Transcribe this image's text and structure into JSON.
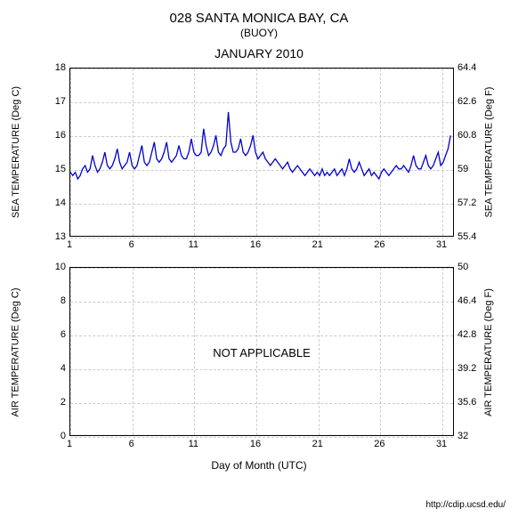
{
  "title_main": "028 SANTA MONICA BAY, CA",
  "title_sub": "(BUOY)",
  "title_month": "JANUARY 2010",
  "xlabel": "Day of Month (UTC)",
  "footer_url": "http://cdip.ucsd.edu/",
  "background_color": "#ffffff",
  "grid_color": "#cccccc",
  "axis_color": "#000000",
  "text_color": "#000000",
  "series_color": "#0000cc",
  "panel_top": {
    "ylabel_left": "SEA TEMPERATURE (Deg C)",
    "ylabel_right": "SEA TEMPERATURE (Deg F)",
    "ylim_left": [
      13,
      18
    ],
    "ylim_right": [
      55.4,
      64.4
    ],
    "yticks_left": [
      13,
      14,
      15,
      16,
      17,
      18
    ],
    "yticks_right": [
      55.4,
      57.2,
      59,
      60.8,
      62.6,
      64.4
    ],
    "xlim": [
      1,
      32
    ],
    "xticks": [
      1,
      6,
      11,
      16,
      21,
      26,
      31
    ],
    "data": {
      "x": [
        1,
        1.2,
        1.4,
        1.6,
        1.8,
        2,
        2.2,
        2.4,
        2.6,
        2.8,
        3,
        3.2,
        3.4,
        3.6,
        3.8,
        4,
        4.2,
        4.4,
        4.6,
        4.8,
        5,
        5.2,
        5.4,
        5.6,
        5.8,
        6,
        6.2,
        6.4,
        6.6,
        6.8,
        7,
        7.2,
        7.4,
        7.6,
        7.8,
        8,
        8.2,
        8.4,
        8.6,
        8.8,
        9,
        9.2,
        9.4,
        9.6,
        9.8,
        10,
        10.2,
        10.4,
        10.6,
        10.8,
        11,
        11.2,
        11.4,
        11.6,
        11.8,
        12,
        12.2,
        12.4,
        12.6,
        12.8,
        13,
        13.2,
        13.4,
        13.6,
        13.8,
        14,
        14.2,
        14.4,
        14.6,
        14.8,
        15,
        15.2,
        15.4,
        15.6,
        15.8,
        16,
        16.2,
        16.4,
        16.6,
        16.8,
        17,
        17.2,
        17.4,
        17.6,
        17.8,
        18,
        18.2,
        18.4,
        18.6,
        18.8,
        19,
        19.2,
        19.4,
        19.6,
        19.8,
        20,
        20.2,
        20.4,
        20.6,
        20.8,
        21,
        21.2,
        21.4,
        21.6,
        21.8,
        22,
        22.2,
        22.4,
        22.6,
        22.8,
        23,
        23.2,
        23.4,
        23.6,
        23.8,
        24,
        24.2,
        24.4,
        24.6,
        24.8,
        25,
        25.2,
        25.4,
        25.6,
        25.8,
        26,
        26.2,
        26.4,
        26.6,
        26.8,
        27,
        27.2,
        27.4,
        27.6,
        27.8,
        28,
        28.2,
        28.4,
        28.6,
        28.8,
        29,
        29.2,
        29.4,
        29.6,
        29.8,
        30,
        30.2,
        30.4,
        30.6,
        30.8,
        31,
        31.2,
        31.4,
        31.6,
        31.8
      ],
      "y": [
        14.9,
        14.8,
        14.9,
        14.7,
        14.8,
        15.0,
        15.1,
        14.9,
        15.0,
        15.4,
        15.1,
        14.9,
        15.0,
        15.2,
        15.5,
        15.1,
        15.0,
        15.1,
        15.3,
        15.6,
        15.2,
        15.0,
        15.1,
        15.2,
        15.5,
        15.1,
        15.0,
        15.1,
        15.4,
        15.7,
        15.2,
        15.1,
        15.2,
        15.5,
        15.8,
        15.3,
        15.2,
        15.3,
        15.5,
        15.8,
        15.3,
        15.2,
        15.3,
        15.4,
        15.7,
        15.4,
        15.3,
        15.3,
        15.5,
        15.9,
        15.5,
        15.4,
        15.4,
        15.5,
        16.2,
        15.7,
        15.4,
        15.5,
        15.7,
        16.0,
        15.5,
        15.4,
        15.6,
        15.7,
        16.7,
        15.8,
        15.5,
        15.5,
        15.6,
        15.9,
        15.5,
        15.4,
        15.5,
        15.7,
        16.0,
        15.5,
        15.3,
        15.4,
        15.5,
        15.3,
        15.2,
        15.1,
        15.2,
        15.3,
        15.2,
        15.1,
        15.0,
        15.1,
        15.2,
        15.0,
        14.9,
        15.0,
        15.1,
        15.0,
        14.9,
        14.8,
        14.9,
        15.0,
        14.9,
        14.8,
        14.9,
        14.8,
        15.0,
        14.8,
        14.9,
        14.8,
        14.9,
        15.0,
        14.8,
        14.9,
        15.0,
        14.8,
        15.0,
        15.3,
        15.0,
        14.9,
        15.0,
        15.2,
        15.0,
        14.8,
        14.9,
        15.0,
        14.8,
        14.9,
        14.8,
        14.7,
        14.9,
        15.0,
        14.9,
        14.8,
        14.9,
        15.0,
        15.1,
        15.0,
        15.0,
        15.1,
        15.0,
        14.9,
        15.1,
        15.4,
        15.1,
        15.0,
        15.0,
        15.2,
        15.4,
        15.1,
        15.0,
        15.1,
        15.3,
        15.5,
        15.1,
        15.2,
        15.4,
        15.6,
        16.0
      ]
    }
  },
  "panel_bot": {
    "ylabel_left": "AIR TEMPERATURE (Deg C)",
    "ylabel_right": "AIR TEMPERATURE (Deg F)",
    "ylim_left": [
      0,
      10
    ],
    "ylim_right": [
      32,
      50
    ],
    "yticks_left": [
      0,
      2,
      4,
      6,
      8,
      10
    ],
    "yticks_right": [
      32,
      35.6,
      39.2,
      42.8,
      46.4,
      50
    ],
    "xlim": [
      1,
      32
    ],
    "xticks": [
      1,
      6,
      11,
      16,
      21,
      26,
      31
    ],
    "overlay_text": "NOT APPLICABLE"
  }
}
